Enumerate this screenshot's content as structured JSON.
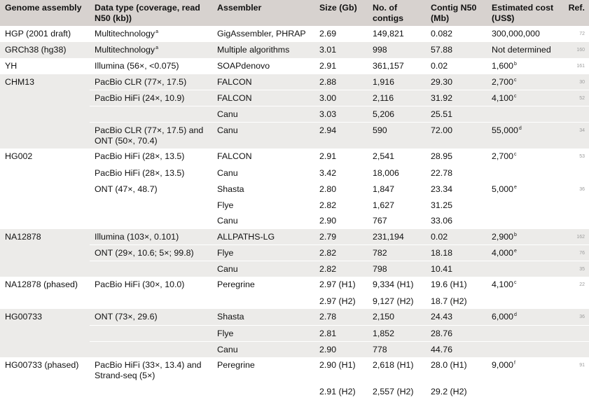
{
  "headers": {
    "genome": "Genome assembly",
    "data_type": "Data type (coverage, read N50 (kb))",
    "assembler": "Assembler",
    "size": "Size (Gb)",
    "contigs": "No. of contigs",
    "n50": "Contig N50 (Mb)",
    "cost": "Estimated cost (US$)",
    "ref": "Ref."
  },
  "rows": [
    {
      "genome": "HGP (2001 draft)",
      "data": "Multitechnology",
      "data_sup": "a",
      "assembler": "GigAssembler, PHRAP",
      "size": "2.69",
      "contigs": "149,821",
      "n50": "0.082",
      "cost": "300,000,000",
      "cost_sup": "",
      "ref": "72"
    },
    {
      "genome": "GRCh38 (hg38)",
      "data": "Multitechnology",
      "data_sup": "a",
      "assembler": "Multiple algorithms",
      "size": "3.01",
      "contigs": "998",
      "n50": "57.88",
      "cost": "Not determined",
      "cost_sup": "",
      "ref": "160"
    },
    {
      "genome": "YH",
      "data": "Illumina (56×, <0.075)",
      "data_sup": "",
      "assembler": "SOAPdenovo",
      "size": "2.91",
      "contigs": "361,157",
      "n50": "0.02",
      "cost": "1,600",
      "cost_sup": "b",
      "ref": "161"
    },
    {
      "genome": "CHM13",
      "data": "PacBio CLR (77×, 17.5)",
      "data_sup": "",
      "assembler": "FALCON",
      "size": "2.88",
      "contigs": "1,916",
      "n50": "29.30",
      "cost": "2,700",
      "cost_sup": "c",
      "ref": "30"
    },
    {
      "genome": "",
      "data": "PacBio HiFi (24×, 10.9)",
      "data_sup": "",
      "assembler": "FALCON",
      "size": "3.00",
      "contigs": "2,116",
      "n50": "31.92",
      "cost": "4,100",
      "cost_sup": "c",
      "ref": "52"
    },
    {
      "genome": "",
      "data": "",
      "data_sup": "",
      "assembler": "Canu",
      "size": "3.03",
      "contigs": "5,206",
      "n50": "25.51",
      "cost": "",
      "cost_sup": "",
      "ref": ""
    },
    {
      "genome": "",
      "data": "PacBio CLR (77×, 17.5) and ONT (50×, 70.4)",
      "data_sup": "",
      "assembler": "Canu",
      "size": "2.94",
      "contigs": "590",
      "n50": "72.00",
      "cost": "55,000",
      "cost_sup": "d",
      "ref": "34"
    },
    {
      "genome": "HG002",
      "data": "PacBio HiFi (28×, 13.5)",
      "data_sup": "",
      "assembler": "FALCON",
      "size": "2.91",
      "contigs": "2,541",
      "n50": "28.95",
      "cost": "2,700",
      "cost_sup": "c",
      "ref": "53"
    },
    {
      "genome": "",
      "data": "PacBio HiFi (28×, 13.5)",
      "data_sup": "",
      "assembler": "Canu",
      "size": "3.42",
      "contigs": "18,006",
      "n50": "22.78",
      "cost": "",
      "cost_sup": "",
      "ref": ""
    },
    {
      "genome": "",
      "data": "ONT (47×, 48.7)",
      "data_sup": "",
      "assembler": "Shasta",
      "size": "2.80",
      "contigs": "1,847",
      "n50": "23.34",
      "cost": "5,000",
      "cost_sup": "e",
      "ref": "36"
    },
    {
      "genome": "",
      "data": "",
      "data_sup": "",
      "assembler": "Flye",
      "size": "2.82",
      "contigs": "1,627",
      "n50": "31.25",
      "cost": "",
      "cost_sup": "",
      "ref": ""
    },
    {
      "genome": "",
      "data": "",
      "data_sup": "",
      "assembler": "Canu",
      "size": "2.90",
      "contigs": "767",
      "n50": "33.06",
      "cost": "",
      "cost_sup": "",
      "ref": ""
    },
    {
      "genome": "NA12878",
      "data": "Illumina (103×, 0.101)",
      "data_sup": "",
      "assembler": "ALLPATHS-LG",
      "size": "2.79",
      "contigs": "231,194",
      "n50": "0.02",
      "cost": "2,900",
      "cost_sup": "b",
      "ref": "162"
    },
    {
      "genome": "",
      "data": "ONT (29×, 10.6; 5×; 99.8)",
      "data_sup": "",
      "assembler": "Flye",
      "size": "2.82",
      "contigs": "782",
      "n50": "18.18",
      "cost": "4,000",
      "cost_sup": "e",
      "ref": "76"
    },
    {
      "genome": "",
      "data": "",
      "data_sup": "",
      "assembler": "Canu",
      "size": "2.82",
      "contigs": "798",
      "n50": "10.41",
      "cost": "",
      "cost_sup": "",
      "ref": "35"
    },
    {
      "genome": "NA12878 (phased)",
      "data": "PacBio HiFi (30×, 10.0)",
      "data_sup": "",
      "assembler": "Peregrine",
      "size": "2.97 (H1)",
      "contigs": "9,334 (H1)",
      "n50": "19.6 (H1)",
      "cost": "4,100",
      "cost_sup": "c",
      "ref": "22"
    },
    {
      "genome": "",
      "data": "",
      "data_sup": "",
      "assembler": "",
      "size": "2.97 (H2)",
      "contigs": "9,127 (H2)",
      "n50": "18.7 (H2)",
      "cost": "",
      "cost_sup": "",
      "ref": ""
    },
    {
      "genome": "HG00733",
      "data": "ONT (73×, 29.6)",
      "data_sup": "",
      "assembler": "Shasta",
      "size": "2.78",
      "contigs": "2,150",
      "n50": "24.43",
      "cost": "6,000",
      "cost_sup": "d",
      "ref": "36"
    },
    {
      "genome": "",
      "data": "",
      "data_sup": "",
      "assembler": "Flye",
      "size": "2.81",
      "contigs": "1,852",
      "n50": "28.76",
      "cost": "",
      "cost_sup": "",
      "ref": ""
    },
    {
      "genome": "",
      "data": "",
      "data_sup": "",
      "assembler": "Canu",
      "size": "2.90",
      "contigs": "778",
      "n50": "44.76",
      "cost": "",
      "cost_sup": "",
      "ref": ""
    },
    {
      "genome": "HG00733 (phased)",
      "data": "PacBio HiFi (33×, 13.4) and Strand-seq (5×)",
      "data_sup": "",
      "assembler": "Peregrine",
      "size": "2.90 (H1)",
      "contigs": "2,618 (H1)",
      "n50": "28.0 (H1)",
      "cost": "9,000",
      "cost_sup": "f",
      "ref": "91"
    },
    {
      "genome": "",
      "data": "",
      "data_sup": "",
      "assembler": "",
      "size": "2.91 (H2)",
      "contigs": "2,557 (H2)",
      "n50": "29.2 (H2)",
      "cost": "",
      "cost_sup": "",
      "ref": ""
    }
  ]
}
